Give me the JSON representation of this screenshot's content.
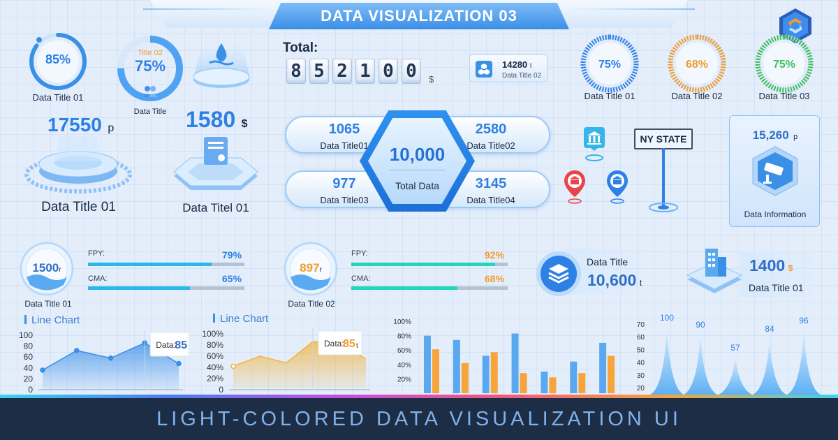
{
  "header": {
    "title": "DATA VISUALIZATION 03"
  },
  "banner": {
    "text": "LIGHT-COLORED DATA VISUALIZATION UI"
  },
  "top_left": {
    "ring1": {
      "value": "85%",
      "fraction": 0.85,
      "label": "Data Title 01"
    },
    "ring2": {
      "title": "Title 02",
      "value": "75%",
      "fraction": 0.75,
      "label": "Data Title"
    },
    "water_icon": "water-drop-icon"
  },
  "platforms": {
    "p1": {
      "value": "17550",
      "unit": "p",
      "label": "Data Title 01"
    },
    "p2": {
      "value": "1580",
      "unit": "$",
      "label": "Data Titel 01"
    }
  },
  "total": {
    "label": "Total:",
    "digits": [
      "8",
      "5",
      "2",
      "1",
      "0",
      "0"
    ],
    "unit": "$",
    "badge": {
      "value": "14280",
      "unit": "t",
      "label": "Data Title 02"
    }
  },
  "hub": {
    "center_value": "10,000",
    "center_label": "Total Data",
    "items": [
      {
        "value": "1065",
        "label": "Data Title01"
      },
      {
        "value": "2580",
        "label": "Data Title02"
      },
      {
        "value": "977",
        "label": "Data Title03"
      },
      {
        "value": "3145",
        "label": "Data Title04"
      }
    ]
  },
  "top_right_rings": [
    {
      "value": "75%",
      "fraction": 0.75,
      "label": "Data Title 01",
      "color": "#2f80e5"
    },
    {
      "value": "68%",
      "fraction": 0.68,
      "label": "Data Title 02",
      "color": "#f29a2e"
    },
    {
      "value": "75%",
      "fraction": 0.75,
      "label": "Data Title 03",
      "color": "#3cbf5a"
    }
  ],
  "map": {
    "sign": "NY STATE"
  },
  "camera_card": {
    "value": "15,260",
    "unit": "p",
    "label": "Data Information"
  },
  "gauges": [
    {
      "value": "1500",
      "unit": "r",
      "label": "Data Title 01",
      "bars": [
        {
          "name": "FPY:",
          "value": "79%",
          "fraction": 0.79
        },
        {
          "name": "CMA:",
          "value": "65%",
          "fraction": 0.65
        }
      ]
    },
    {
      "value": "897",
      "unit": "r",
      "label": "Data Title 02",
      "bars": [
        {
          "name": "FPY:",
          "value": "92%",
          "fraction": 0.92
        },
        {
          "name": "CMA:",
          "value": "68%",
          "fraction": 0.68
        }
      ]
    }
  ],
  "stat_cards": [
    {
      "title": "Data Title",
      "value": "10,600",
      "unit": "t"
    },
    {
      "value": "1400",
      "unit": "$",
      "label": "Data Title 01"
    }
  ],
  "chart_data": [
    {
      "type": "area",
      "title": "Line Chart",
      "yticks": [
        "100",
        "80",
        "60",
        "40",
        "20",
        "0"
      ],
      "ylim": [
        0,
        100
      ],
      "values": [
        36,
        72,
        58,
        86,
        48
      ],
      "tooltip": {
        "label": "Data:",
        "value": "85",
        "unit": "t"
      },
      "color": "#3a8fe6"
    },
    {
      "type": "area",
      "title": "Line Chart",
      "yticks": [
        "100%",
        "80%",
        "60%",
        "40%",
        "20%",
        "0"
      ],
      "ylim": [
        0,
        100
      ],
      "values": [
        42,
        60,
        48,
        86,
        82,
        55
      ],
      "tooltip": {
        "label": "Data:",
        "value": "85",
        "unit": "t"
      },
      "color": "#f2b33a"
    },
    {
      "type": "bar",
      "yticks": [
        "100%",
        "80%",
        "60%",
        "40%",
        "20%"
      ],
      "ylim": [
        0,
        100
      ],
      "series": [
        {
          "values": [
            80,
            74,
            52,
            83,
            30,
            44,
            70
          ],
          "color": "#5aa9f0"
        },
        {
          "values": [
            61,
            42,
            57,
            28,
            22,
            28,
            52
          ],
          "color": "#f7a43a"
        }
      ]
    },
    {
      "type": "area",
      "yticks": [
        "70",
        "60",
        "50",
        "40",
        "30",
        "20"
      ],
      "peaks": [
        {
          "label": "100",
          "value": 100
        },
        {
          "label": "90",
          "value": 90
        },
        {
          "label": "57",
          "value": 57
        },
        {
          "label": "84",
          "value": 84
        },
        {
          "label": "96",
          "value": 96
        }
      ]
    }
  ]
}
